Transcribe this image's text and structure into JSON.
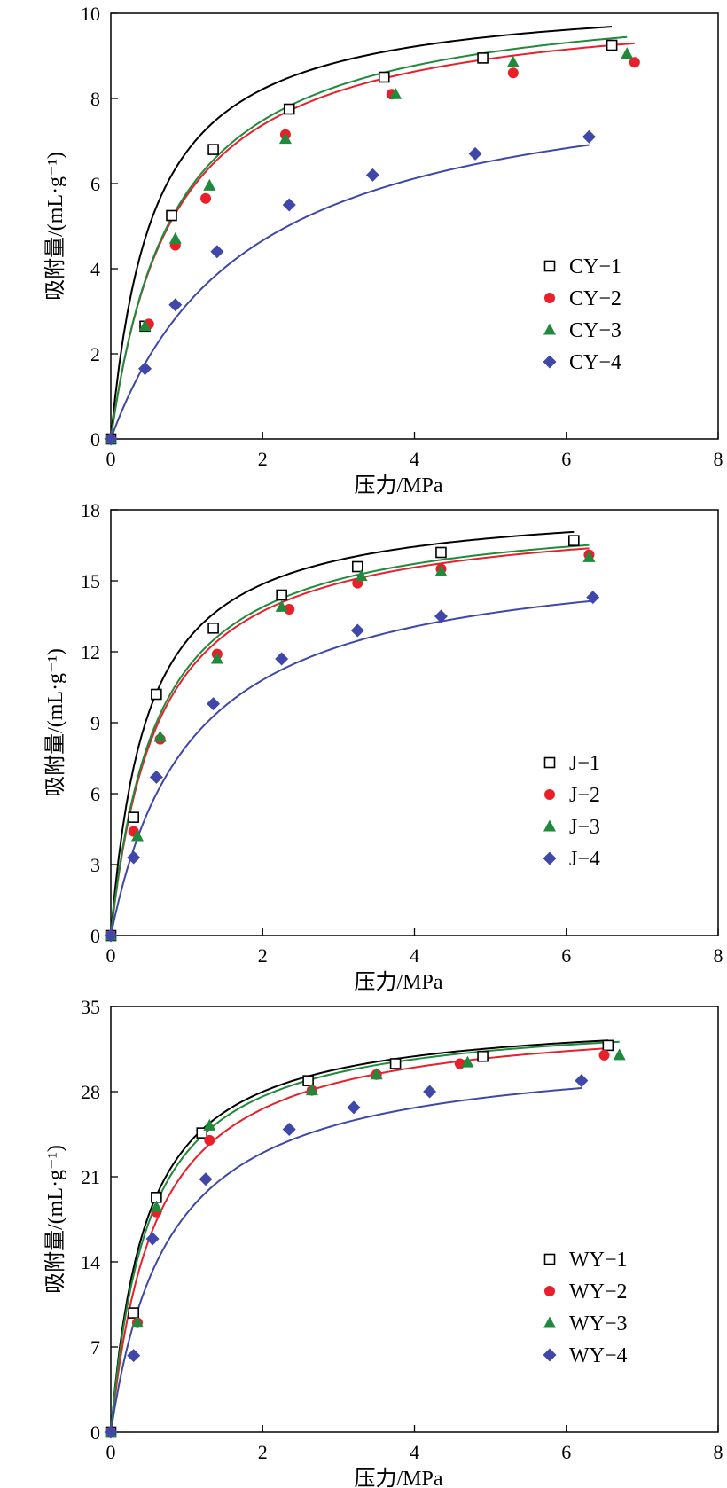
{
  "chart_data": [
    {
      "type": "scatter",
      "xlabel": "压力/MPa",
      "ylabel": "吸附量/(mL·g⁻¹)",
      "xlim": [
        0,
        8
      ],
      "ylim": [
        0,
        10
      ],
      "xticks": [
        0,
        2,
        4,
        6,
        8
      ],
      "yticks": [
        0,
        2,
        4,
        6,
        8,
        10
      ],
      "grid": false,
      "legend_position": "lower-right",
      "series": [
        {
          "name": "CY−1",
          "marker": "open-square",
          "color": "#000000",
          "x": [
            0,
            0.45,
            0.8,
            1.35,
            2.35,
            3.6,
            4.9,
            6.6
          ],
          "y": [
            0,
            2.65,
            5.25,
            6.8,
            7.75,
            8.5,
            8.95,
            9.25
          ],
          "fit_k": 1.8,
          "fit_vl": 10.5
        },
        {
          "name": "CY−2",
          "marker": "circle",
          "color": "#e8202a",
          "x": [
            0,
            0.5,
            0.85,
            1.25,
            2.3,
            3.7,
            5.3,
            6.9
          ],
          "y": [
            0,
            2.7,
            4.55,
            5.65,
            7.15,
            8.1,
            8.6,
            8.85
          ],
          "fit_k": 1.22,
          "fit_vl": 10.4
        },
        {
          "name": "CY−3",
          "marker": "triangle",
          "color": "#1f8a3c",
          "x": [
            0,
            0.45,
            0.85,
            1.3,
            2.3,
            3.75,
            5.3,
            6.8
          ],
          "y": [
            0,
            2.65,
            4.7,
            5.95,
            7.05,
            8.1,
            8.85,
            9.05
          ],
          "fit_k": 1.2,
          "fit_vl": 10.6
        },
        {
          "name": "CY−4",
          "marker": "diamond",
          "color": "#3f48a8",
          "x": [
            0,
            0.45,
            0.85,
            1.4,
            2.35,
            3.45,
            4.8,
            6.3
          ],
          "y": [
            0,
            1.65,
            3.15,
            4.4,
            5.5,
            6.2,
            6.7,
            7.1
          ],
          "fit_k": 0.55,
          "fit_vl": 8.9
        }
      ]
    },
    {
      "type": "scatter",
      "xlabel": "压力/MPa",
      "ylabel": "吸附量/(mL·g⁻¹)",
      "xlim": [
        0,
        8
      ],
      "ylim": [
        0,
        18
      ],
      "xticks": [
        0,
        2,
        4,
        6,
        8
      ],
      "yticks": [
        0,
        3,
        6,
        9,
        12,
        15,
        18
      ],
      "grid": false,
      "legend_position": "lower-right",
      "series": [
        {
          "name": "J−1",
          "marker": "open-square",
          "color": "#000000",
          "x": [
            0,
            0.3,
            0.6,
            1.35,
            2.25,
            3.25,
            4.35,
            6.1
          ],
          "y": [
            0,
            5.0,
            10.2,
            13.0,
            14.4,
            15.6,
            16.2,
            16.7
          ],
          "fit_k": 2.1,
          "fit_vl": 18.4
        },
        {
          "name": "J−2",
          "marker": "circle",
          "color": "#e8202a",
          "x": [
            0,
            0.3,
            0.65,
            1.4,
            2.35,
            3.25,
            4.35,
            6.3
          ],
          "y": [
            0,
            4.4,
            8.3,
            11.9,
            13.8,
            14.9,
            15.5,
            16.1
          ],
          "fit_k": 1.6,
          "fit_vl": 18.0
        },
        {
          "name": "J−3",
          "marker": "triangle",
          "color": "#1f8a3c",
          "x": [
            0,
            0.35,
            0.65,
            1.4,
            2.25,
            3.3,
            4.35,
            6.3
          ],
          "y": [
            0,
            4.2,
            8.4,
            11.7,
            13.9,
            15.2,
            15.4,
            16.0
          ],
          "fit_k": 1.65,
          "fit_vl": 18.1
        },
        {
          "name": "J−4",
          "marker": "diamond",
          "color": "#3f48a8",
          "x": [
            0,
            0.3,
            0.6,
            1.35,
            2.25,
            3.25,
            4.35,
            6.35
          ],
          "y": [
            0,
            3.3,
            6.7,
            9.8,
            11.7,
            12.9,
            13.5,
            14.3
          ],
          "fit_k": 0.95,
          "fit_vl": 16.5
        }
      ]
    },
    {
      "type": "scatter",
      "xlabel": "压力/MPa",
      "ylabel": "吸附量/(mL·g⁻¹)",
      "xlim": [
        0,
        8
      ],
      "ylim": [
        0,
        35
      ],
      "xticks": [
        0,
        2,
        4,
        6,
        8
      ],
      "yticks": [
        0,
        7,
        14,
        21,
        28,
        35
      ],
      "grid": false,
      "legend_position": "lower-right",
      "series": [
        {
          "name": "WY−1",
          "marker": "open-square",
          "color": "#000000",
          "x": [
            0,
            0.3,
            0.6,
            1.2,
            2.6,
            3.75,
            4.9,
            6.55
          ],
          "y": [
            0,
            9.8,
            19.3,
            24.6,
            28.9,
            30.3,
            30.9,
            31.8
          ],
          "fit_k": 2.15,
          "fit_vl": 34.5
        },
        {
          "name": "WY−2",
          "marker": "circle",
          "color": "#e8202a",
          "x": [
            0,
            0.35,
            0.6,
            1.3,
            2.65,
            3.5,
            4.6,
            6.5
          ],
          "y": [
            0,
            9.0,
            18.1,
            24.0,
            28.1,
            29.4,
            30.3,
            31.0
          ],
          "fit_k": 1.7,
          "fit_vl": 34.4
        },
        {
          "name": "WY−3",
          "marker": "triangle",
          "color": "#1f8a3c",
          "x": [
            0,
            0.35,
            0.6,
            1.3,
            2.65,
            3.5,
            4.7,
            6.7
          ],
          "y": [
            0,
            9.0,
            18.5,
            25.2,
            28.1,
            29.4,
            30.4,
            31.0
          ],
          "fit_k": 2.0,
          "fit_vl": 34.5
        },
        {
          "name": "WY−4",
          "marker": "diamond",
          "color": "#3f48a8",
          "x": [
            0,
            0.3,
            0.55,
            1.25,
            2.35,
            3.2,
            4.2,
            6.2
          ],
          "y": [
            0,
            6.3,
            15.9,
            20.8,
            24.9,
            26.7,
            28.0,
            28.9
          ],
          "fit_k": 1.3,
          "fit_vl": 31.8
        }
      ]
    }
  ]
}
